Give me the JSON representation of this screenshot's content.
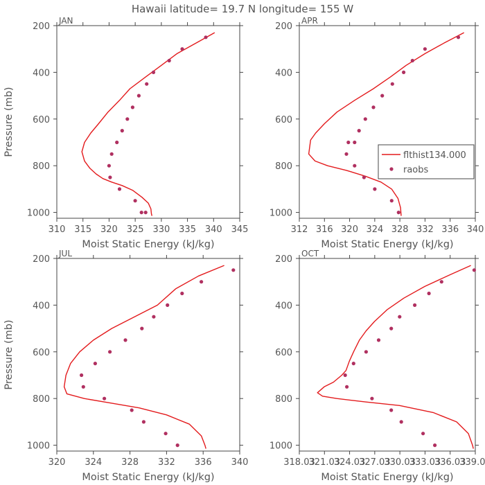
{
  "title": "Hawaii  latitude= 19.7 N longitude= 155 W",
  "colors": {
    "model": "#e31a1c",
    "obs": "#b03060",
    "axis": "#444444",
    "text": "#555555"
  },
  "legend": {
    "model_label": "flthist134.000",
    "obs_label": "raobs"
  },
  "chart_data": [
    {
      "type": "line",
      "panel": "JAN",
      "xlabel": "Moist Static Energy (kJ/kg)",
      "ylabel": "Pressure (mb)",
      "xlim": [
        310,
        345
      ],
      "ylim": [
        200,
        1025
      ],
      "y_inverted": true,
      "xticks": [
        "310",
        "315",
        "320",
        "325",
        "330",
        "335",
        "340",
        "345"
      ],
      "yticks": [
        "200",
        "400",
        "600",
        "800",
        "1000"
      ],
      "series": [
        {
          "name": "flthist134.000",
          "x": [
            340.2,
            337,
            333,
            330,
            327,
            324,
            322,
            319.8,
            318,
            316.5,
            315.3,
            314.8,
            315.3,
            316.3,
            317.5,
            318.8,
            320.5,
            322.5,
            324.5,
            326.3,
            327.5,
            328,
            328.1,
            328.2
          ],
          "y": [
            230,
            270,
            320,
            370,
            420,
            470,
            520,
            570,
            620,
            660,
            700,
            740,
            780,
            810,
            835,
            855,
            870,
            885,
            905,
            935,
            960,
            985,
            1005,
            1015
          ]
        },
        {
          "name": "raobs",
          "x": [
            338.5,
            334,
            331.5,
            328.5,
            327.2,
            325.7,
            324.5,
            323.5,
            322.5,
            321.5,
            320.5,
            320,
            320.2,
            322,
            325,
            326.2,
            327
          ],
          "y": [
            250,
            300,
            350,
            400,
            450,
            500,
            550,
            600,
            650,
            700,
            750,
            800,
            850,
            900,
            950,
            1000,
            1000
          ]
        }
      ]
    },
    {
      "type": "line",
      "panel": "APR",
      "xlabel": "Moist Static Energy (kJ/kg)",
      "ylabel": "",
      "xlim": [
        312,
        340
      ],
      "ylim": [
        200,
        1025
      ],
      "y_inverted": true,
      "xticks": [
        "312",
        "316",
        "320",
        "324",
        "328",
        "332",
        "336",
        "340"
      ],
      "yticks": [
        "200",
        "400",
        "600",
        "800",
        "1000"
      ],
      "series": [
        {
          "name": "flthist134.000",
          "x": [
            338.2,
            335,
            332,
            329,
            326.5,
            323.8,
            320.8,
            318,
            316,
            314.6,
            313.8,
            313.5,
            314.5,
            316.5,
            319.5,
            322.5,
            325,
            326.7,
            327.7,
            328.1,
            328.2
          ],
          "y": [
            230,
            275,
            320,
            370,
            420,
            470,
            520,
            570,
            620,
            660,
            690,
            750,
            780,
            800,
            820,
            845,
            870,
            900,
            940,
            980,
            1015
          ]
        },
        {
          "name": "raobs",
          "x": [
            337.3,
            332,
            330,
            328.6,
            326.8,
            325.2,
            323.8,
            322.5,
            321.5,
            320.8,
            319.8,
            319.5,
            320.8,
            322.3,
            324,
            326.7,
            327.8
          ],
          "y": [
            250,
            300,
            350,
            400,
            450,
            500,
            550,
            600,
            650,
            700,
            700,
            750,
            800,
            850,
            900,
            950,
            1000
          ]
        }
      ]
    },
    {
      "type": "line",
      "panel": "JUL",
      "xlabel": "Moist Static Energy (kJ/kg)",
      "ylabel": "Pressure (mb)",
      "xlim": [
        320,
        340
      ],
      "ylim": [
        200,
        1025
      ],
      "y_inverted": true,
      "xticks": [
        "320",
        "324",
        "328",
        "332",
        "336",
        "340"
      ],
      "yticks": [
        "200",
        "400",
        "600",
        "800",
        "1000"
      ],
      "series": [
        {
          "name": "flthist134.000",
          "x": [
            338.3,
            335.5,
            333,
            331,
            328.5,
            326,
            324,
            322.5,
            321.5,
            321,
            320.8,
            321.1,
            323,
            326,
            329,
            332,
            334.5,
            335.8,
            336.2,
            336.3
          ],
          "y": [
            230,
            275,
            330,
            400,
            450,
            500,
            550,
            600,
            650,
            700,
            750,
            780,
            800,
            820,
            840,
            870,
            910,
            960,
            1000,
            1015
          ]
        },
        {
          "name": "raobs",
          "x": [
            339.3,
            335.8,
            333.7,
            332.1,
            330.6,
            329.3,
            327.5,
            325.8,
            324.2,
            322.7,
            322.9,
            325.2,
            328.2,
            329.5,
            331.9,
            333.2
          ],
          "y": [
            250,
            300,
            350,
            400,
            450,
            500,
            550,
            600,
            650,
            700,
            750,
            800,
            850,
            900,
            950,
            1000
          ]
        }
      ]
    },
    {
      "type": "line",
      "panel": "OCT",
      "xlabel": "Moist Static Energy (kJ/kg)",
      "ylabel": "",
      "xlim": [
        318.03,
        339.03
      ],
      "ylim": [
        200,
        1025
      ],
      "y_inverted": true,
      "xticks": [
        "318.03",
        "321.03",
        "324.03",
        "327.03",
        "330.03",
        "333.03",
        "336.03",
        "339.03"
      ],
      "yticks": [
        "200",
        "400",
        "600",
        "800",
        "1000"
      ],
      "series": [
        {
          "name": "flthist134.000",
          "x": [
            338.5,
            336,
            333,
            330.5,
            328.5,
            327,
            326,
            325.2,
            324.5,
            324,
            323.6,
            323.1,
            322.1,
            321,
            320.2,
            320.8,
            322.5,
            326,
            330,
            334,
            336.8,
            338.2,
            338.7,
            338.8
          ],
          "y": [
            230,
            270,
            320,
            370,
            420,
            470,
            510,
            550,
            600,
            640,
            680,
            700,
            730,
            750,
            775,
            790,
            800,
            815,
            830,
            860,
            900,
            950,
            1000,
            1015
          ]
        },
        {
          "name": "raobs",
          "x": [
            338.9,
            335,
            333.5,
            331.8,
            330,
            329,
            327.5,
            326,
            324.5,
            323.5,
            323.7,
            326.7,
            329,
            330.2,
            332.8,
            334.2
          ],
          "y": [
            250,
            300,
            350,
            400,
            450,
            500,
            550,
            600,
            650,
            700,
            750,
            800,
            850,
            900,
            950,
            1000
          ]
        }
      ]
    }
  ]
}
